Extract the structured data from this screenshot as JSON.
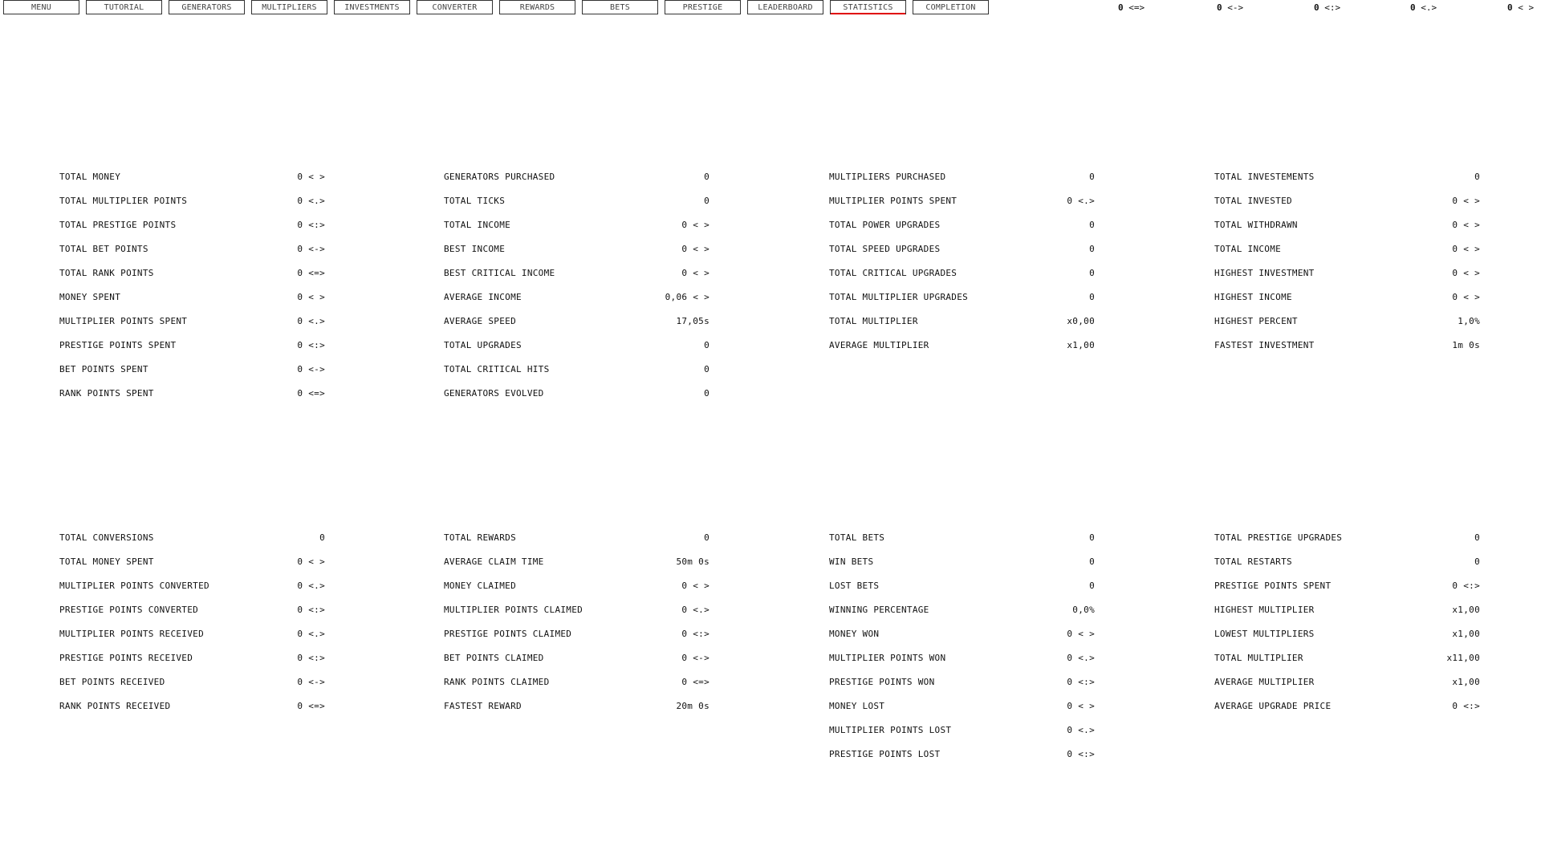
{
  "accent_color": "#e00000",
  "nav": {
    "items": [
      "MENU",
      "TUTORIAL",
      "GENERATORS",
      "MULTIPLIERS",
      "INVESTMENTS",
      "CONVERTER",
      "REWARDS",
      "BETS",
      "PRESTIGE",
      "LEADERBOARD",
      "STATISTICS",
      "COMPLETION"
    ],
    "active": "STATISTICS"
  },
  "counters": [
    {
      "value": "0",
      "unit": "<=>"
    },
    {
      "value": "0",
      "unit": "<->"
    },
    {
      "value": "0",
      "unit": "<:>"
    },
    {
      "value": "0",
      "unit": "<.>"
    },
    {
      "value": "0",
      "unit": "< >"
    }
  ],
  "sections": [
    [
      {
        "label": "TOTAL MONEY",
        "value": "0 < >"
      },
      {
        "label": "TOTAL MULTIPLIER POINTS",
        "value": "0 <.>"
      },
      {
        "label": "TOTAL PRESTIGE POINTS",
        "value": "0 <:>"
      },
      {
        "label": "TOTAL BET POINTS",
        "value": "0 <->"
      },
      {
        "label": "TOTAL RANK POINTS",
        "value": "0 <=>"
      },
      {
        "label": "MONEY SPENT",
        "value": "0 < >"
      },
      {
        "label": "MULTIPLIER POINTS SPENT",
        "value": "0 <.>"
      },
      {
        "label": "PRESTIGE POINTS SPENT",
        "value": "0 <:>"
      },
      {
        "label": "BET POINTS SPENT",
        "value": "0 <->"
      },
      {
        "label": "RANK POINTS SPENT",
        "value": "0 <=>"
      }
    ],
    [
      {
        "label": "GENERATORS PURCHASED",
        "value": "0"
      },
      {
        "label": "TOTAL TICKS",
        "value": "0"
      },
      {
        "label": "TOTAL INCOME",
        "value": "0 < >"
      },
      {
        "label": "BEST INCOME",
        "value": "0 < >"
      },
      {
        "label": "BEST CRITICAL INCOME",
        "value": "0 < >"
      },
      {
        "label": "AVERAGE INCOME",
        "value": "0,06 < >"
      },
      {
        "label": "AVERAGE SPEED",
        "value": "17,05s"
      },
      {
        "label": "TOTAL UPGRADES",
        "value": "0"
      },
      {
        "label": "TOTAL CRITICAL HITS",
        "value": "0"
      },
      {
        "label": "GENERATORS EVOLVED",
        "value": "0"
      }
    ],
    [
      {
        "label": "MULTIPLIERS PURCHASED",
        "value": "0"
      },
      {
        "label": "MULTIPLIER POINTS SPENT",
        "value": "0 <.>"
      },
      {
        "label": "TOTAL POWER UPGRADES",
        "value": "0"
      },
      {
        "label": "TOTAL SPEED UPGRADES",
        "value": "0"
      },
      {
        "label": "TOTAL CRITICAL UPGRADES",
        "value": "0"
      },
      {
        "label": "TOTAL MULTIPLIER UPGRADES",
        "value": "0"
      },
      {
        "label": "TOTAL MULTIPLIER",
        "value": "x0,00"
      },
      {
        "label": "AVERAGE MULTIPLIER",
        "value": "x1,00"
      }
    ],
    [
      {
        "label": "TOTAL INVESTEMENTS",
        "value": "0"
      },
      {
        "label": "TOTAL INVESTED",
        "value": "0 < >"
      },
      {
        "label": "TOTAL WITHDRAWN",
        "value": "0 < >"
      },
      {
        "label": "TOTAL INCOME",
        "value": "0 < >"
      },
      {
        "label": "HIGHEST INVESTMENT",
        "value": "0 < >"
      },
      {
        "label": "HIGHEST INCOME",
        "value": "0 < >"
      },
      {
        "label": "HIGHEST PERCENT",
        "value": "1,0%"
      },
      {
        "label": "FASTEST INVESTMENT",
        "value": "1m 0s"
      }
    ],
    [
      {
        "label": "TOTAL CONVERSIONS",
        "value": "0"
      },
      {
        "label": "TOTAL MONEY SPENT",
        "value": "0 < >"
      },
      {
        "label": "MULTIPLIER POINTS CONVERTED",
        "value": "0 <.>"
      },
      {
        "label": "PRESTIGE POINTS CONVERTED",
        "value": "0 <:>"
      },
      {
        "label": "MULTIPLIER POINTS RECEIVED",
        "value": "0 <.>"
      },
      {
        "label": "PRESTIGE POINTS RECEIVED",
        "value": "0 <:>"
      },
      {
        "label": "BET POINTS RECEIVED",
        "value": "0 <->"
      },
      {
        "label": "RANK POINTS RECEIVED",
        "value": "0 <=>"
      }
    ],
    [
      {
        "label": "TOTAL REWARDS",
        "value": "0"
      },
      {
        "label": "AVERAGE CLAIM TIME",
        "value": "50m 0s"
      },
      {
        "label": "MONEY CLAIMED",
        "value": "0 < >"
      },
      {
        "label": "MULTIPLIER POINTS CLAIMED",
        "value": "0 <.>"
      },
      {
        "label": "PRESTIGE POINTS CLAIMED",
        "value": "0 <:>"
      },
      {
        "label": "BET POINTS CLAIMED",
        "value": "0 <->"
      },
      {
        "label": "RANK POINTS CLAIMED",
        "value": "0 <=>"
      },
      {
        "label": "FASTEST REWARD",
        "value": "20m 0s"
      }
    ],
    [
      {
        "label": "TOTAL BETS",
        "value": "0"
      },
      {
        "label": "WIN BETS",
        "value": "0"
      },
      {
        "label": "LOST BETS",
        "value": "0"
      },
      {
        "label": "WINNING PERCENTAGE",
        "value": "0,0%"
      },
      {
        "label": "MONEY WON",
        "value": "0 < >"
      },
      {
        "label": "MULTIPLIER POINTS WON",
        "value": "0 <.>"
      },
      {
        "label": "PRESTIGE POINTS WON",
        "value": "0 <:>"
      },
      {
        "label": "MONEY LOST",
        "value": "0 < >"
      },
      {
        "label": "MULTIPLIER POINTS LOST",
        "value": "0 <.>"
      },
      {
        "label": "PRESTIGE POINTS LOST",
        "value": "0 <:>"
      }
    ],
    [
      {
        "label": "TOTAL PRESTIGE UPGRADES",
        "value": "0"
      },
      {
        "label": "TOTAL RESTARTS",
        "value": "0"
      },
      {
        "label": "PRESTIGE POINTS SPENT",
        "value": "0 <:>"
      },
      {
        "label": "HIGHEST MULTIPLIER",
        "value": "x1,00"
      },
      {
        "label": "LOWEST MULTIPLIERS",
        "value": "x1,00"
      },
      {
        "label": "TOTAL MULTIPLIER",
        "value": "x11,00"
      },
      {
        "label": "AVERAGE MULTIPLIER",
        "value": "x1,00"
      },
      {
        "label": "AVERAGE UPGRADE PRICE",
        "value": "0 <:>"
      }
    ]
  ]
}
